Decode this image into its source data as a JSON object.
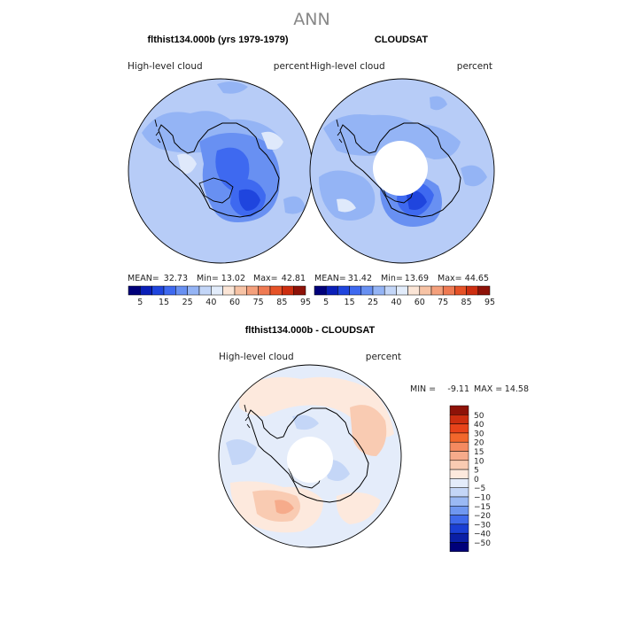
{
  "page": {
    "title": "ANN"
  },
  "panels": [
    {
      "title": "flthist134.000b (yrs 1979-1979)",
      "variable": "High-level cloud",
      "units": "percent",
      "stats": {
        "mean_label": "MEAN=",
        "mean": "32.73",
        "min_label": "Min=",
        "min": "13.02",
        "max_label": "Max=",
        "max": "42.81"
      }
    },
    {
      "title": "CLOUDSAT",
      "variable": "High-level cloud",
      "units": "percent",
      "stats": {
        "mean_label": "MEAN=",
        "mean": "31.42",
        "min_label": "Min=",
        "min": "13.69",
        "max_label": "Max=",
        "max": "44.65"
      }
    },
    {
      "title": "flthist134.000b - CLOUDSAT",
      "variable": "High-level cloud",
      "units": "percent",
      "stats": {
        "min_label": "MIN =",
        "min": "-9.11",
        "max_label": "MAX =",
        "max": "14.58"
      }
    }
  ],
  "colorbar_top": {
    "labels": [
      "5",
      "15",
      "25",
      "40",
      "60",
      "75",
      "85",
      "95"
    ],
    "colors": [
      "#00007a",
      "#0a1fb8",
      "#1f45de",
      "#3e69f0",
      "#6890f2",
      "#94b4f5",
      "#c3d6f8",
      "#e2ecfb",
      "#fbe5d6",
      "#f7c3a5",
      "#f4a07c",
      "#ef7a53",
      "#e65227",
      "#cd2e10",
      "#8e1208"
    ]
  },
  "colorbar_diff": {
    "labels": [
      "50",
      "40",
      "30",
      "20",
      "15",
      "10",
      "5",
      "0",
      "−5",
      "−10",
      "−15",
      "−20",
      "−30",
      "−40",
      "−50"
    ],
    "colors": [
      "#8e1208",
      "#cd2e10",
      "#e8431a",
      "#f2672c",
      "#f48a60",
      "#f6ab8b",
      "#f9cbb2",
      "#fde9dd",
      "#e4ecfa",
      "#c4d6f7",
      "#9ab9f4",
      "#6f97f0",
      "#3f6aeb",
      "#1a3fd4",
      "#0a1fa6",
      "#00007a"
    ]
  },
  "map_colors": {
    "base_top": "#b7ccf7",
    "mid_top": "#94b4f5",
    "dark_top": "#6890f2",
    "darker_top": "#3e69f0",
    "darkest_top": "#1f45de",
    "light_top": "#dfe9fb",
    "base_diff": "#e4ecfa",
    "pos1": "#fde9dd",
    "pos2": "#f9cbb2",
    "pos3": "#f6ab8b",
    "neg1": "#c4d6f7"
  }
}
